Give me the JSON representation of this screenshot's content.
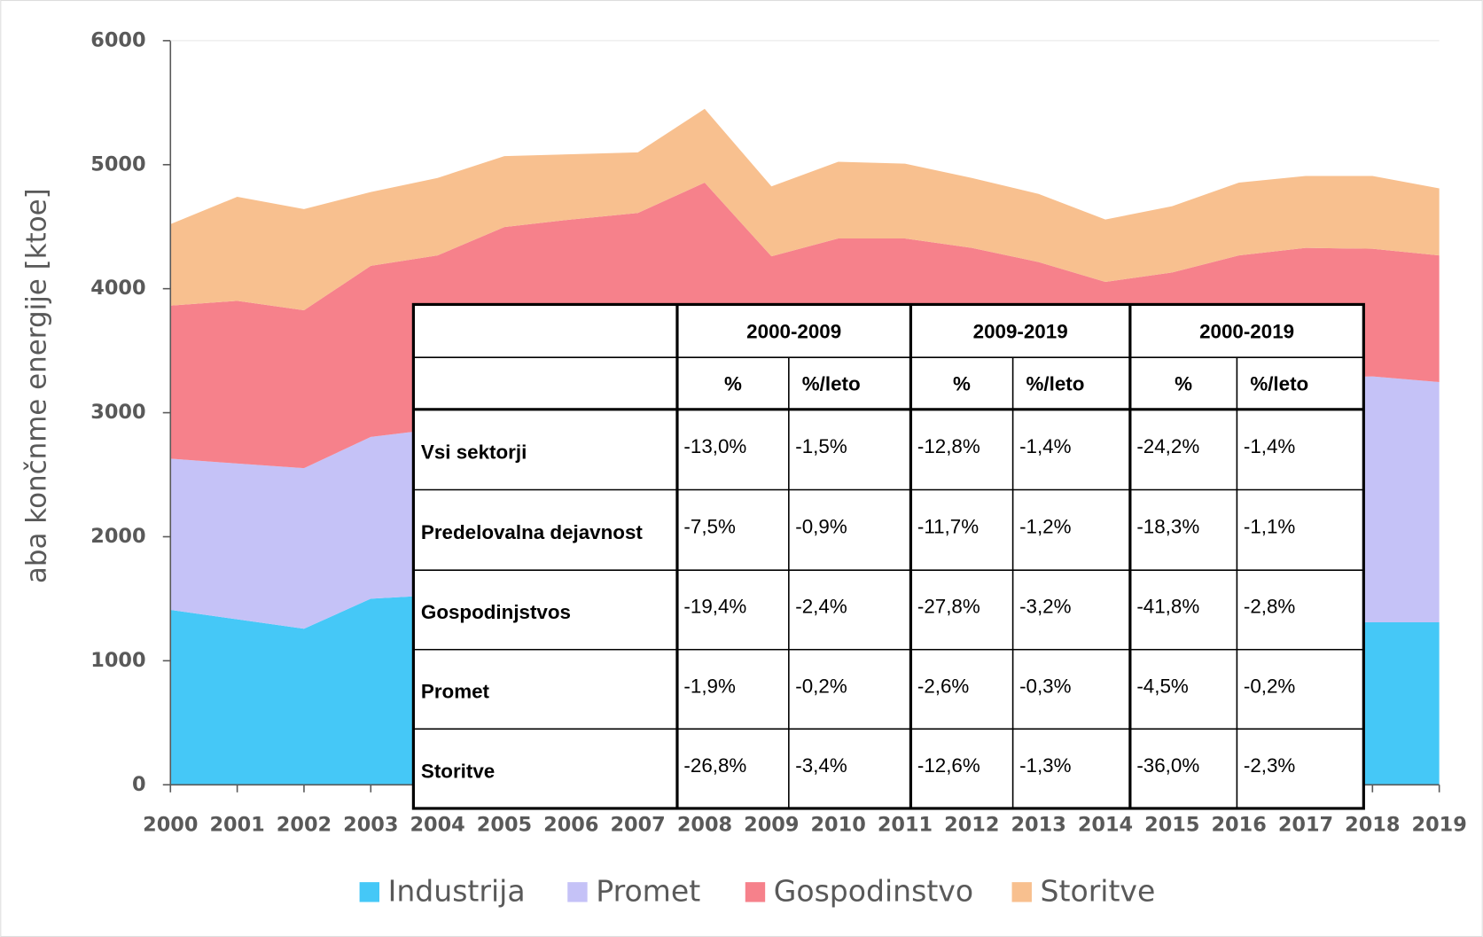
{
  "chart_data": {
    "type": "stacked_area",
    "y_label": "aba končnme energije [ktoe]",
    "x": [
      2000,
      2001,
      2002,
      2003,
      2004,
      2005,
      2006,
      2007,
      2008,
      2009,
      2010,
      2011,
      2012,
      2013,
      2014,
      2015,
      2016,
      2017,
      2018,
      2019
    ],
    "xlim": [
      2000,
      2019
    ],
    "ylim": [
      0,
      6000
    ],
    "yticks": [
      0,
      1000,
      2000,
      3000,
      4000,
      5000,
      6000
    ],
    "legend": "bottom",
    "series": [
      {
        "name": "Industrija",
        "color": "#45c8f7",
        "values": [
          1410,
          1334,
          1258,
          1500,
          1530,
          1550,
          1560,
          1570,
          1560,
          1250,
          1300,
          1320,
          1310,
          1300,
          1290,
          1300,
          1310,
          1320,
          1310,
          1310
        ]
      },
      {
        "name": "Promet",
        "color": "#c5c2f7",
        "values": [
          1220,
          1256,
          1295,
          1305,
          1340,
          1600,
          1650,
          1700,
          1800,
          1750,
          1750,
          1750,
          1720,
          1730,
          1760,
          1800,
          1880,
          1960,
          1983,
          1937
        ]
      },
      {
        "name": "Gospodinstvo",
        "color": "#f6818b",
        "values": [
          1234,
          1312,
          1273,
          1379,
          1398,
          1347,
          1348,
          1341,
          1495,
          1261,
          1355,
          1335,
          1299,
          1185,
          1005,
          1031,
          1078,
          1049,
          1029,
          1021
        ]
      },
      {
        "name": "Storitve",
        "color": "#f8c08f",
        "values": [
          656,
          839,
          816,
          595,
          625,
          572,
          526,
          488,
          595,
          564,
          618,
          603,
          564,
          549,
          503,
          534,
          587,
          580,
          587,
          541
        ]
      }
    ]
  },
  "table": {
    "groups": [
      "2000-2009",
      "2009-2019",
      "2000-2019"
    ],
    "subheaders": [
      "%",
      "%/leto",
      "%",
      "%/leto",
      "%",
      "%/leto"
    ],
    "rows": [
      [
        "Vsi sektorji",
        "-13,0%",
        "-1,5%",
        "-12,8%",
        "-1,4%",
        "-24,2%",
        "-1,4%"
      ],
      [
        "Predelovalna dejavnost",
        "-7,5%",
        "-0,9%",
        "-11,7%",
        "-1,2%",
        "-18,3%",
        "-1,1%"
      ],
      [
        "Gospodinjstvos",
        "-19,4%",
        "-2,4%",
        "-27,8%",
        "-3,2%",
        "-41,8%",
        "-2,8%"
      ],
      [
        "Promet",
        "-1,9%",
        "-0,2%",
        "-2,6%",
        "-0,3%",
        "-4,5%",
        "-0,2%"
      ],
      [
        "Storitve",
        "-26,8%",
        "-3,4%",
        "-12,6%",
        "-1,3%",
        "-36,0%",
        "-2,3%"
      ]
    ]
  }
}
